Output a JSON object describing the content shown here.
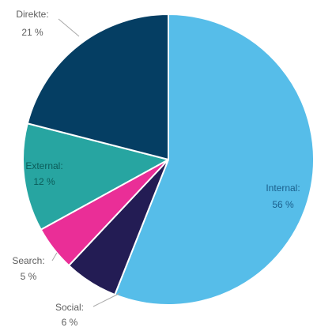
{
  "chart_data": {
    "type": "pie",
    "title": "",
    "start_angle_deg": 0,
    "direction": "clockwise",
    "slices": [
      {
        "label": "Internal",
        "value": 56,
        "value_text": "56 %",
        "color": "#56bde9",
        "text_color": "#1b5f8c"
      },
      {
        "label": "Social",
        "value": 6,
        "value_text": "6 %",
        "color": "#231c54",
        "text_color": "#5e5e5e"
      },
      {
        "label": "Search",
        "value": 5,
        "value_text": "5 %",
        "color": "#ea2e97",
        "text_color": "#5e5e5e"
      },
      {
        "label": "External",
        "value": 12,
        "value_text": "12 %",
        "color": "#27a5a1",
        "text_color": "#0b5c59"
      },
      {
        "label": "Direkte",
        "value": 21,
        "value_text": "21 %",
        "color": "#053e63",
        "text_color": "#5e5e5e"
      }
    ],
    "labels": [
      {
        "name": "Internal",
        "text": "Internal:",
        "value_text": "56 %"
      },
      {
        "name": "Social",
        "text": "Social:",
        "value_text": "6 %"
      },
      {
        "name": "Search",
        "text": "Search:",
        "value_text": "5 %"
      },
      {
        "name": "External",
        "text": "External:",
        "value_text": "12 %"
      },
      {
        "name": "Direkte",
        "text": "Direkte:",
        "value_text": "21 %"
      }
    ],
    "legend": "none"
  }
}
